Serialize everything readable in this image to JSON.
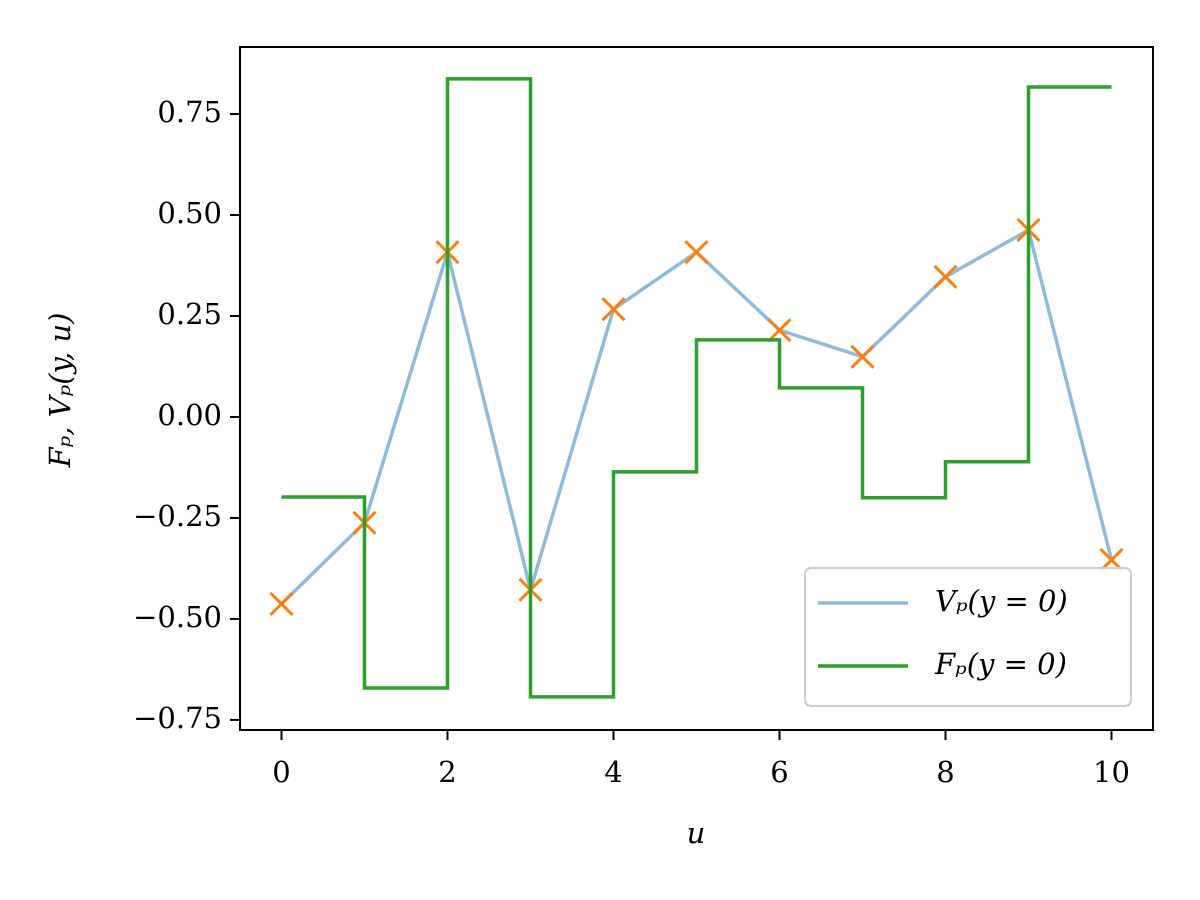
{
  "chart_data": {
    "type": "line",
    "xlabel": "u",
    "ylabel": "Fₚ, Vₚ(y, u)",
    "x": [
      0,
      1,
      2,
      3,
      4,
      5,
      6,
      7,
      8,
      9,
      10
    ],
    "series": [
      {
        "name": "Vₚ(y = 0)",
        "color": "#8fbbd9",
        "marker": "x",
        "marker_color": "#ff7f0e",
        "drawstyle": "default",
        "values": [
          -0.463,
          -0.262,
          0.408,
          -0.428,
          0.267,
          0.408,
          0.215,
          0.149,
          0.347,
          0.463,
          -0.354
        ]
      },
      {
        "name": "Fₚ(y = 0)",
        "color": "#2ca02c",
        "drawstyle": "steps-post",
        "values": [
          -0.198,
          -0.671,
          0.837,
          -0.693,
          -0.136,
          0.191,
          0.072,
          -0.2,
          -0.111,
          0.817,
          0.817
        ]
      }
    ],
    "xlim": [
      -0.5,
      10.5
    ],
    "xticks": [
      0,
      2,
      4,
      6,
      8,
      10
    ],
    "ylim": [
      -0.775,
      0.916
    ],
    "yticks": [
      {
        "value": -0.75,
        "label": "−0.75"
      },
      {
        "value": -0.5,
        "label": "−0.50"
      },
      {
        "value": -0.25,
        "label": "−0.25"
      },
      {
        "value": 0,
        "label": "0.00"
      },
      {
        "value": 0.25,
        "label": "0.25"
      },
      {
        "value": 0.5,
        "label": "0.50"
      },
      {
        "value": 0.75,
        "label": "0.75"
      }
    ],
    "grid": false,
    "legend": "lower right"
  }
}
